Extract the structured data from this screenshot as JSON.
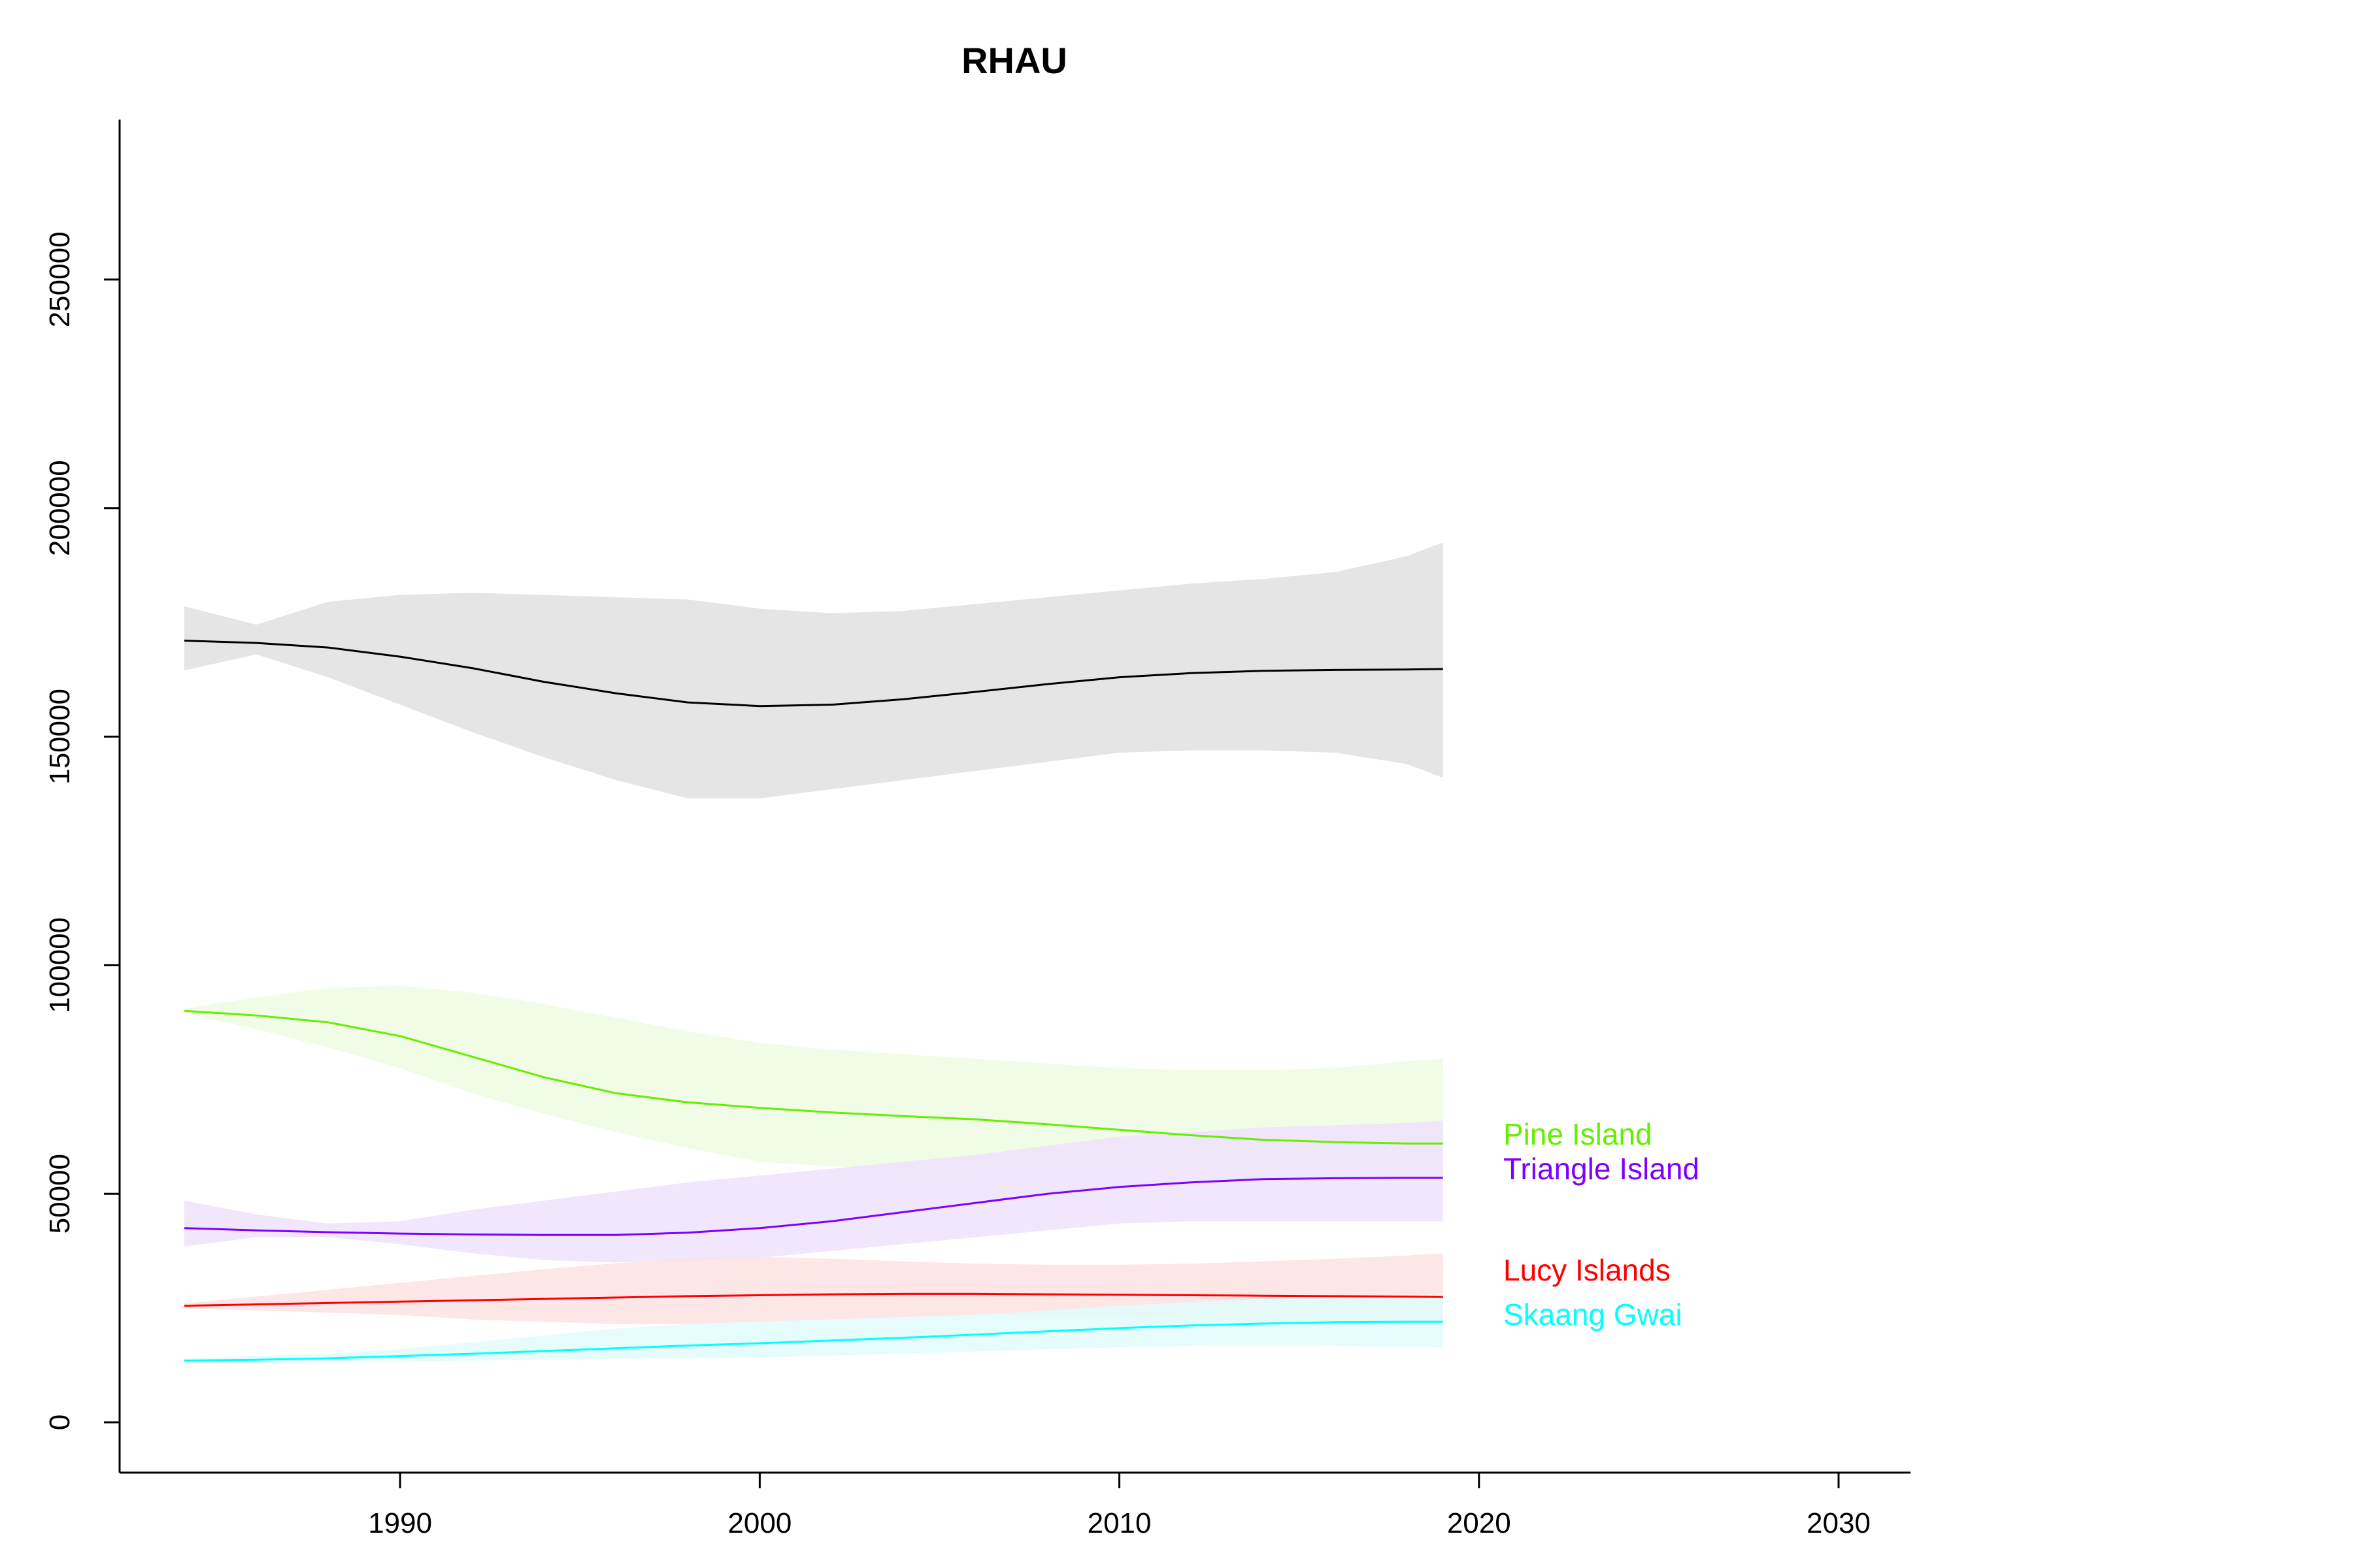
{
  "chart_data": {
    "type": "line",
    "title": "RHAU",
    "xlabel": "",
    "ylabel": "",
    "xlim": [
      1982.2,
      2032.0
    ],
    "ylim": [
      -11000,
      285000
    ],
    "x_ticks": [
      1990,
      2000,
      2010,
      2020,
      2030
    ],
    "y_ticks": [
      0,
      50000,
      100000,
      150000,
      200000,
      250000
    ],
    "grid": false,
    "legend": "direct labels at right end of lines",
    "series": [
      {
        "name": "",
        "color": "#000000",
        "band_color": "#e0e0e0",
        "x": [
          1984,
          1986,
          1988,
          1990,
          1992,
          1994,
          1996,
          1998,
          2000,
          2002,
          2004,
          2006,
          2008,
          2010,
          2012,
          2014,
          2016,
          2018,
          2019
        ],
        "y": [
          171000,
          170500,
          169500,
          167500,
          165000,
          162000,
          159500,
          157500,
          156700,
          157000,
          158200,
          159800,
          161500,
          163000,
          163900,
          164400,
          164600,
          164700,
          164800
        ],
        "lower": [
          164500,
          168000,
          163000,
          157000,
          151000,
          145500,
          140500,
          136500,
          136500,
          138500,
          140500,
          142500,
          144500,
          146500,
          147000,
          147000,
          146500,
          144000,
          141000
        ],
        "upper": [
          178500,
          174500,
          179500,
          181000,
          181500,
          181000,
          180500,
          180000,
          178000,
          177000,
          177500,
          179000,
          180500,
          182000,
          183500,
          184500,
          186000,
          189500,
          192500
        ]
      },
      {
        "name": "Pine Island",
        "color": "#66ee00",
        "band_color": "#eefce2",
        "x": [
          1984,
          1986,
          1988,
          1990,
          1992,
          1994,
          1996,
          1998,
          2000,
          2002,
          2004,
          2006,
          2008,
          2010,
          2012,
          2014,
          2016,
          2018,
          2019
        ],
        "y": [
          90000,
          89000,
          87500,
          84500,
          80000,
          75500,
          72000,
          70000,
          68800,
          67800,
          67000,
          66300,
          65200,
          64000,
          62800,
          61800,
          61300,
          61000,
          61000
        ],
        "lower": [
          89500,
          86000,
          82000,
          77500,
          72000,
          67500,
          63500,
          60000,
          57000,
          56000,
          55500,
          55500,
          56000,
          56000,
          56500,
          57000,
          57000,
          57000,
          57000
        ],
        "upper": [
          90500,
          93000,
          95000,
          95500,
          94000,
          91500,
          88500,
          85500,
          83000,
          81500,
          80500,
          79500,
          78500,
          77500,
          77000,
          77000,
          77500,
          79000,
          79500
        ]
      },
      {
        "name": "Triangle Island",
        "color": "#7f00ff",
        "band_color": "#efe2fc",
        "x": [
          1984,
          1986,
          1988,
          1990,
          1992,
          1994,
          1996,
          1998,
          2000,
          2002,
          2004,
          2006,
          2008,
          2010,
          2012,
          2014,
          2016,
          2018,
          2019
        ],
        "y": [
          42500,
          42000,
          41600,
          41300,
          41100,
          41000,
          41000,
          41500,
          42500,
          44000,
          46000,
          48000,
          50000,
          51500,
          52500,
          53200,
          53400,
          53500,
          53500
        ],
        "lower": [
          38500,
          40500,
          40500,
          39000,
          37000,
          35500,
          35000,
          35300,
          36000,
          37500,
          39000,
          40500,
          42000,
          43500,
          44000,
          44000,
          44000,
          44000,
          44000
        ],
        "upper": [
          48500,
          45500,
          43500,
          44000,
          46500,
          48500,
          50500,
          52500,
          54000,
          55500,
          57000,
          58500,
          60500,
          62500,
          63500,
          64500,
          65000,
          65500,
          66000
        ]
      },
      {
        "name": "Lucy Islands",
        "color": "#ff0000",
        "band_color": "#fce2e2",
        "x": [
          1984,
          1986,
          1988,
          1990,
          1992,
          1994,
          1996,
          1998,
          2000,
          2002,
          2004,
          2006,
          2008,
          2010,
          2012,
          2014,
          2016,
          2018,
          2019
        ],
        "y": [
          25500,
          25800,
          26100,
          26400,
          26700,
          27000,
          27300,
          27600,
          27800,
          28000,
          28100,
          28100,
          28000,
          27900,
          27800,
          27700,
          27600,
          27500,
          27400
        ],
        "lower": [
          25000,
          24500,
          24000,
          23500,
          22500,
          22000,
          21500,
          21500,
          22000,
          22500,
          23000,
          23500,
          23500,
          23000,
          22500,
          22000,
          21500,
          21500,
          21500
        ],
        "upper": [
          26000,
          27500,
          29000,
          30500,
          32000,
          33500,
          34800,
          35800,
          36200,
          35800,
          35200,
          34700,
          34500,
          34500,
          34700,
          35200,
          35800,
          36500,
          37000
        ]
      },
      {
        "name": "Skaang Gwai",
        "color": "#00ffff",
        "band_color": "#e2fcfc",
        "x": [
          1984,
          1986,
          1988,
          1990,
          1992,
          1994,
          1996,
          1998,
          2000,
          2002,
          2004,
          2006,
          2008,
          2010,
          2012,
          2014,
          2016,
          2018,
          2019
        ],
        "y": [
          13500,
          13700,
          14000,
          14500,
          15000,
          15600,
          16200,
          16800,
          17300,
          17900,
          18500,
          19200,
          19900,
          20600,
          21200,
          21600,
          21900,
          22000,
          22000
        ],
        "lower": [
          13000,
          13000,
          13200,
          13300,
          13500,
          13700,
          13900,
          14000,
          14200,
          14600,
          15000,
          15500,
          16000,
          16400,
          16700,
          16800,
          16700,
          16500,
          16400
        ],
        "upper": [
          14000,
          14500,
          15000,
          16000,
          17500,
          19000,
          20500,
          21500,
          22000,
          22500,
          23000,
          23500,
          24500,
          25500,
          26300,
          27000,
          27500,
          27800,
          28000
        ]
      }
    ]
  }
}
